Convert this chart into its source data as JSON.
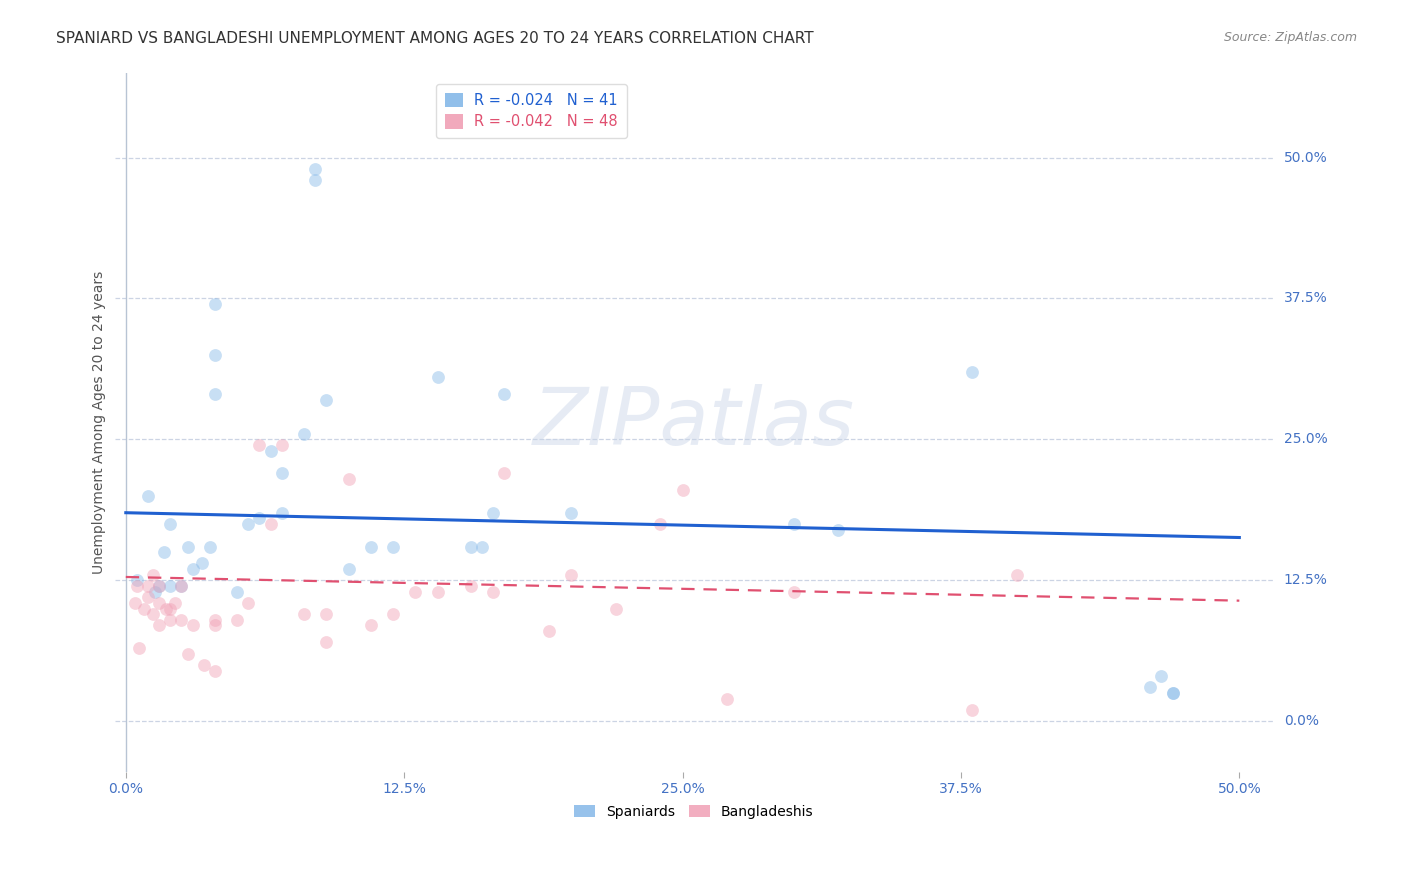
{
  "title": "SPANIARD VS BANGLADESHI UNEMPLOYMENT AMONG AGES 20 TO 24 YEARS CORRELATION CHART",
  "source": "Source: ZipAtlas.com",
  "ylabel": "Unemployment Among Ages 20 to 24 years",
  "xlim": [
    -0.005,
    0.515
  ],
  "ylim": [
    -0.045,
    0.575
  ],
  "xticks": [
    0.0,
    0.125,
    0.25,
    0.375,
    0.5
  ],
  "xticklabels": [
    "0.0%",
    "12.5%",
    "25.0%",
    "37.5%",
    "50.0%"
  ],
  "ytick_vals": [
    0.0,
    0.125,
    0.25,
    0.375,
    0.5
  ],
  "ytick_labels": [
    "0.0%",
    "12.5%",
    "25.0%",
    "37.5%",
    "50.0%"
  ],
  "spaniard_R": "-0.024",
  "spaniard_N": "41",
  "bangladeshi_R": "-0.042",
  "bangladeshi_N": "48",
  "spaniard_color": "#85b8e8",
  "bangladeshi_color": "#f0a0b5",
  "trend_spaniard_color": "#2060d0",
  "trend_bangladeshi_color": "#e05070",
  "watermark": "ZIPatlas",
  "spaniard_x": [
    0.005,
    0.01,
    0.013,
    0.015,
    0.017,
    0.02,
    0.02,
    0.025,
    0.028,
    0.03,
    0.034,
    0.038,
    0.04,
    0.04,
    0.04,
    0.05,
    0.055,
    0.06,
    0.065,
    0.07,
    0.07,
    0.08,
    0.085,
    0.085,
    0.09,
    0.1,
    0.11,
    0.12,
    0.14,
    0.155,
    0.16,
    0.165,
    0.17,
    0.2,
    0.3,
    0.32,
    0.38,
    0.46,
    0.465,
    0.47,
    0.47
  ],
  "spaniard_y": [
    0.125,
    0.2,
    0.115,
    0.12,
    0.15,
    0.12,
    0.175,
    0.12,
    0.155,
    0.135,
    0.14,
    0.155,
    0.37,
    0.29,
    0.325,
    0.115,
    0.175,
    0.18,
    0.24,
    0.22,
    0.185,
    0.255,
    0.48,
    0.49,
    0.285,
    0.135,
    0.155,
    0.155,
    0.305,
    0.155,
    0.155,
    0.185,
    0.29,
    0.185,
    0.175,
    0.17,
    0.31,
    0.03,
    0.04,
    0.025,
    0.025
  ],
  "bangladeshi_x": [
    0.004,
    0.005,
    0.006,
    0.008,
    0.01,
    0.01,
    0.012,
    0.012,
    0.015,
    0.015,
    0.015,
    0.018,
    0.02,
    0.02,
    0.022,
    0.025,
    0.025,
    0.028,
    0.03,
    0.035,
    0.04,
    0.04,
    0.04,
    0.05,
    0.055,
    0.06,
    0.065,
    0.07,
    0.08,
    0.09,
    0.09,
    0.1,
    0.11,
    0.12,
    0.13,
    0.14,
    0.155,
    0.165,
    0.17,
    0.19,
    0.2,
    0.22,
    0.24,
    0.25,
    0.27,
    0.3,
    0.38,
    0.4
  ],
  "bangladeshi_y": [
    0.105,
    0.12,
    0.065,
    0.1,
    0.11,
    0.12,
    0.095,
    0.13,
    0.085,
    0.105,
    0.12,
    0.1,
    0.1,
    0.09,
    0.105,
    0.09,
    0.12,
    0.06,
    0.085,
    0.05,
    0.085,
    0.09,
    0.045,
    0.09,
    0.105,
    0.245,
    0.175,
    0.245,
    0.095,
    0.07,
    0.095,
    0.215,
    0.085,
    0.095,
    0.115,
    0.115,
    0.12,
    0.115,
    0.22,
    0.08,
    0.13,
    0.1,
    0.175,
    0.205,
    0.02,
    0.115,
    0.01,
    0.13
  ],
  "spaniard_trend_x": [
    0.0,
    0.5
  ],
  "spaniard_trend_y": [
    0.185,
    0.163
  ],
  "bangladeshi_trend_x": [
    0.0,
    0.5
  ],
  "bangladeshi_trend_y": [
    0.128,
    0.107
  ],
  "grid_color": "#ccd4e4",
  "bg_color": "#ffffff",
  "title_fontsize": 11,
  "ylabel_fontsize": 10,
  "tick_fontsize": 10,
  "legend_fontsize": 10.5,
  "dot_size": 85,
  "dot_alpha": 0.45
}
